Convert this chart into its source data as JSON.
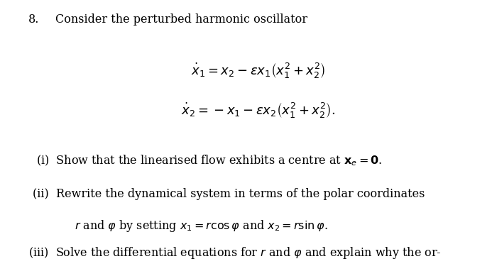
{
  "background_color": "#ffffff",
  "fig_width": 7.0,
  "fig_height": 3.89,
  "dpi": 100,
  "lquote": "“",
  "rquote": "”",
  "eq1": "$\\dot{x}_1 = x_2 - \\epsilon x_1 \\left(x_1^2 + x_2^2\\right)$",
  "eq2": "$\\dot{x}_2 = -x_1 - \\epsilon x_2 \\left(x_1^2 + x_2^2\\right).$"
}
